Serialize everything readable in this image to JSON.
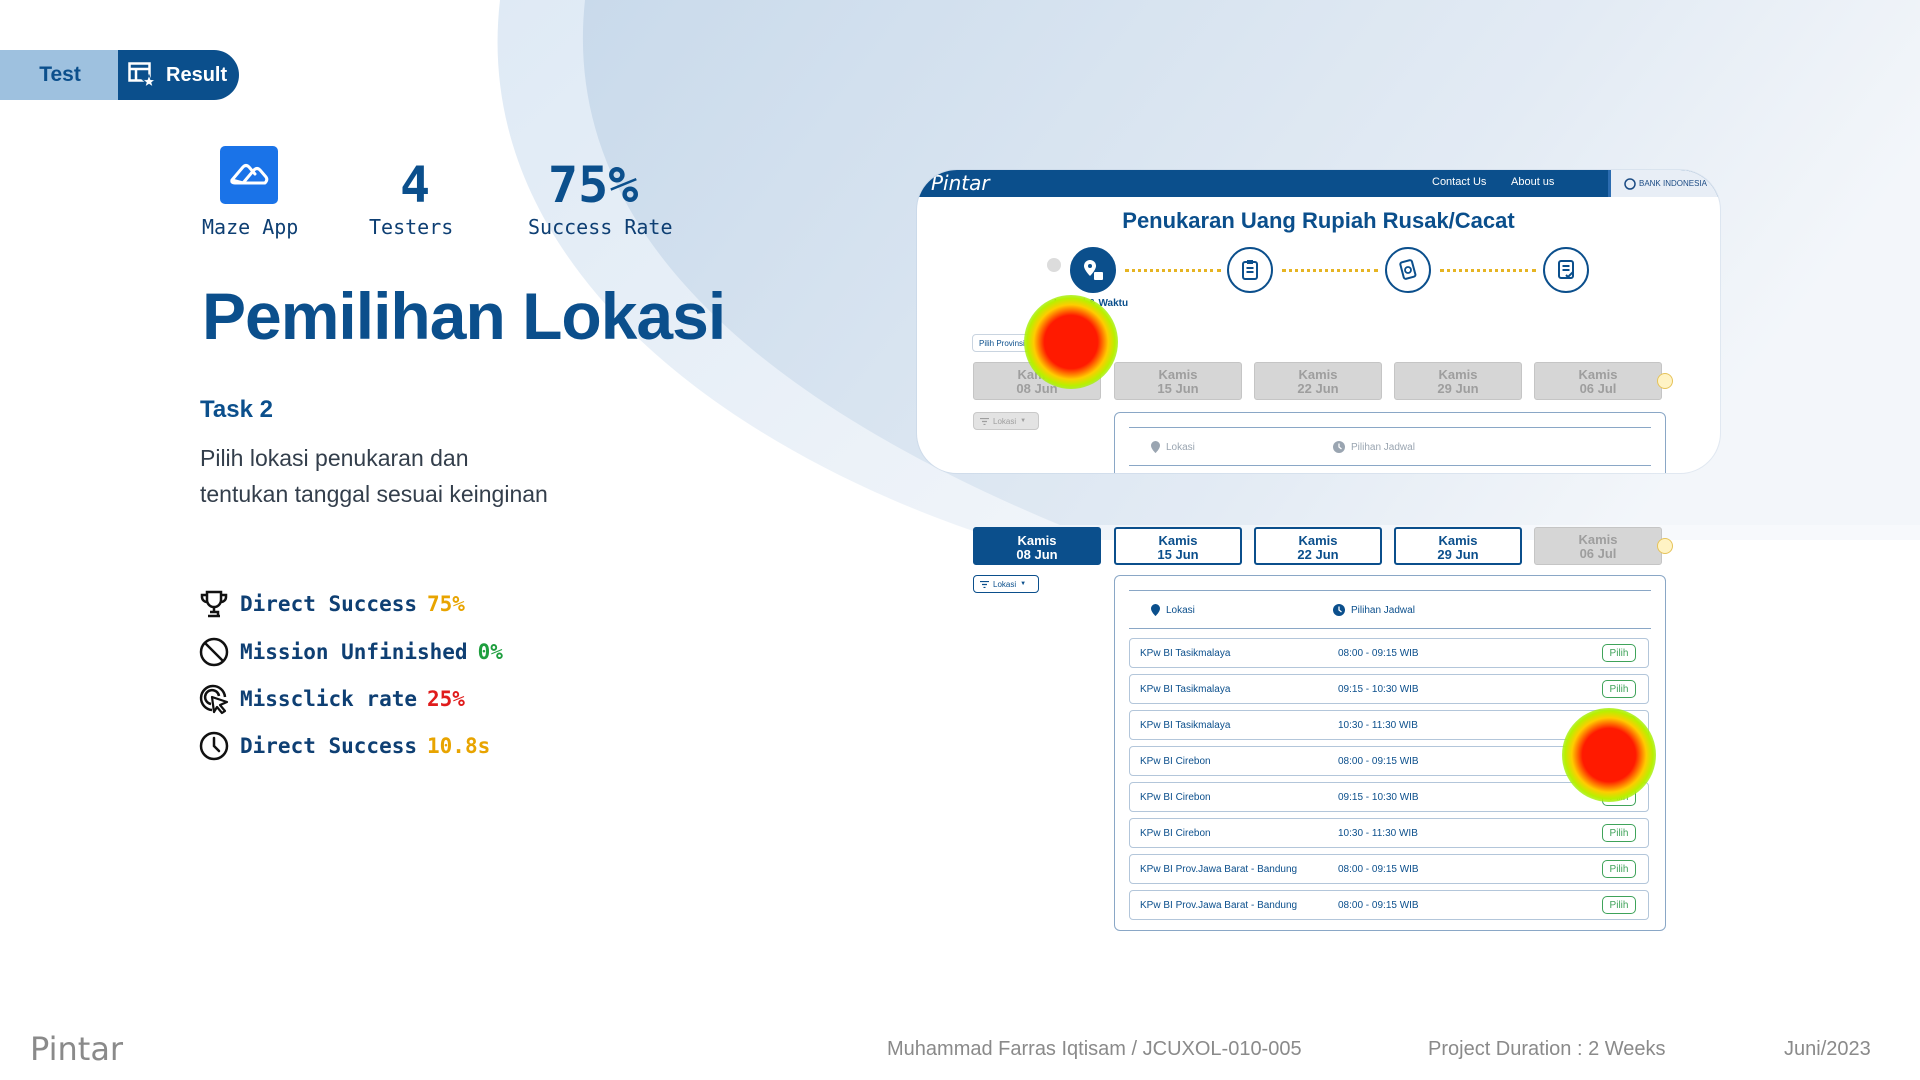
{
  "toggle": {
    "test_label": "Test",
    "result_label": "Result",
    "active": "Result"
  },
  "stats": [
    {
      "value": "",
      "label": "Maze App",
      "icon": "maze-logo-icon"
    },
    {
      "value": "4",
      "label": "Testers"
    },
    {
      "value": "75%",
      "label": "Success Rate"
    }
  ],
  "title": "Pemilihan Lokasi",
  "task": {
    "label": "Task 2",
    "desc_line1": "Pilih lokasi penukaran dan",
    "desc_line2": "tentukan tanggal sesuai keinginan"
  },
  "metrics": [
    {
      "label": "Direct Success",
      "value": "75%",
      "color": "#e8a400",
      "icon": "trophy-icon"
    },
    {
      "label": "Mission Unfinished",
      "value": "0%",
      "color": "#1e9e3e",
      "icon": "prohibited-icon"
    },
    {
      "label": "Missclick rate",
      "value": "25%",
      "color": "#e01b1b",
      "icon": "cursor-click-icon"
    },
    {
      "label": "Direct Success",
      "value": "10.8s",
      "color": "#e8a400",
      "icon": "clock-icon"
    }
  ],
  "mockup": {
    "logo": "Pintar",
    "nav": [
      "Contact Us",
      "About us"
    ],
    "partner": "BANK INDONESIA",
    "page_title": "Penukaran Uang Rupiah Rusak/Cacat",
    "step_label": "Lokasi & Waktu",
    "province_chip": "Pilih Provinsi",
    "filter_chip": "Lokasi",
    "dates": [
      {
        "day": "Kamis",
        "date": "08 Jun"
      },
      {
        "day": "Kamis",
        "date": "15 Jun"
      },
      {
        "day": "Kamis",
        "date": "22 Jun"
      },
      {
        "day": "Kamis",
        "date": "29 Jun"
      },
      {
        "day": "Kamis",
        "date": "06 Jul"
      }
    ],
    "col_location": "Lokasi",
    "col_schedule": "Pilihan Jadwal",
    "pick_label": "Pilih",
    "rows": [
      {
        "location": "KPw BI Tasikmalaya",
        "time": "08:00 - 09:15 WIB"
      },
      {
        "location": "KPw BI Tasikmalaya",
        "time": "09:15 - 10:30 WIB"
      },
      {
        "location": "KPw BI Tasikmalaya",
        "time": "10:30 - 11:30 WIB"
      },
      {
        "location": "KPw BI Cirebon",
        "time": "08:00 - 09:15 WIB"
      },
      {
        "location": "KPw BI Cirebon",
        "time": "09:15 - 10:30 WIB"
      },
      {
        "location": "KPw BI Cirebon",
        "time": "10:30 - 11:30 WIB"
      },
      {
        "location": "KPw BI Prov.Jawa Barat - Bandung",
        "time": "08:00 - 09:15 WIB"
      },
      {
        "location": "KPw BI Prov.Jawa Barat - Bandung",
        "time": "08:00 - 09:15 WIB"
      }
    ]
  },
  "footer": {
    "logo": "Pintar",
    "author": "Muhammad Farras Iqtisam / JCUXOL-010-005",
    "duration": "Project Duration : 2 Weeks",
    "date": "Juni/2023"
  }
}
